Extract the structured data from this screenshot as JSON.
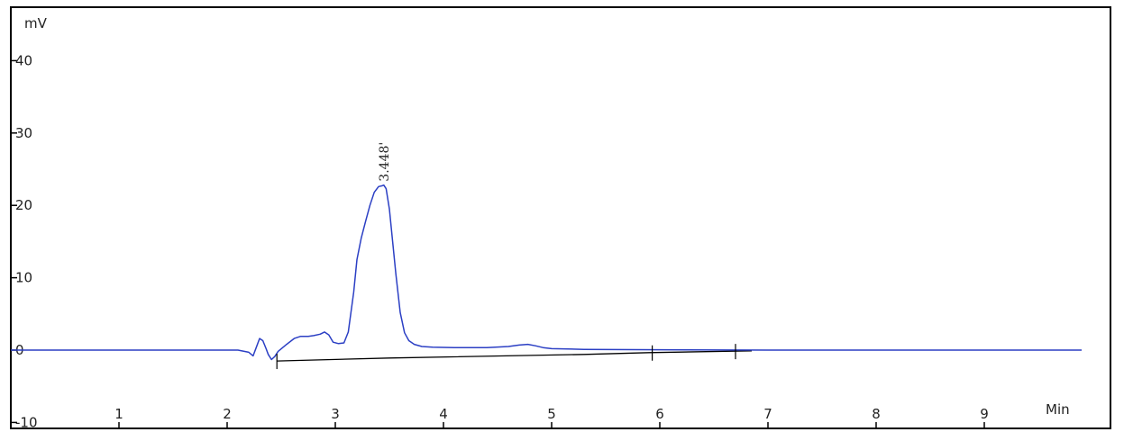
{
  "chart_data": {
    "type": "line",
    "title": "",
    "ylabel": "mV",
    "xlabel": "Min",
    "xlim": [
      0,
      9.9
    ],
    "ylim": [
      -10,
      47
    ],
    "x_ticks": [
      1,
      2,
      3,
      4,
      5,
      6,
      7,
      8,
      9
    ],
    "y_ticks": [
      40,
      30,
      20,
      10,
      0,
      -10
    ],
    "y_tick_labels": [
      "40",
      "30",
      "20",
      "10",
      "0",
      "-10"
    ],
    "x_tick_labels": [
      "1",
      "2",
      "3",
      "4",
      "5",
      "6",
      "7",
      "8",
      "9"
    ],
    "grid": false,
    "peak_annotation": {
      "label": "3.448'",
      "x": 3.448,
      "y": 22.8
    },
    "series": [
      {
        "color": "#2b3fc4",
        "x": [
          0,
          2.1,
          2.2,
          2.24,
          2.27,
          2.3,
          2.33,
          2.36,
          2.38,
          2.41,
          2.44,
          2.47,
          2.55,
          2.62,
          2.68,
          2.75,
          2.8,
          2.86,
          2.9,
          2.94,
          2.98,
          3.03,
          3.08,
          3.12,
          3.17,
          3.2,
          3.24,
          3.28,
          3.32,
          3.36,
          3.4,
          3.43,
          3.448,
          3.47,
          3.5,
          3.53,
          3.56,
          3.6,
          3.64,
          3.68,
          3.73,
          3.8,
          3.9,
          4.1,
          4.4,
          4.6,
          4.7,
          4.78,
          4.85,
          4.92,
          5.0,
          5.3,
          6.0,
          7.0,
          8.0,
          9.0,
          9.9
        ],
        "y": [
          0,
          0,
          -0.3,
          -0.8,
          0.4,
          1.6,
          1.3,
          0.2,
          -0.6,
          -1.3,
          -0.9,
          -0.2,
          0.8,
          1.6,
          1.9,
          1.9,
          2.0,
          2.2,
          2.5,
          2.1,
          1.1,
          0.9,
          1.0,
          2.5,
          8.0,
          12.5,
          15.5,
          17.8,
          20.0,
          21.8,
          22.6,
          22.7,
          22.8,
          22.3,
          19.5,
          15.0,
          10.5,
          5.2,
          2.4,
          1.3,
          0.8,
          0.5,
          0.4,
          0.35,
          0.35,
          0.5,
          0.7,
          0.8,
          0.6,
          0.35,
          0.2,
          0.1,
          0.05,
          0,
          0,
          0,
          0
        ]
      }
    ],
    "baseline": {
      "color": "#000000",
      "x": [
        2.46,
        3.5,
        5.3,
        5.9,
        6.85
      ],
      "y": [
        -1.5,
        -1.1,
        -0.6,
        -0.35,
        -0.1
      ]
    },
    "integration_markers": [
      2.46,
      5.93,
      6.7
    ]
  }
}
